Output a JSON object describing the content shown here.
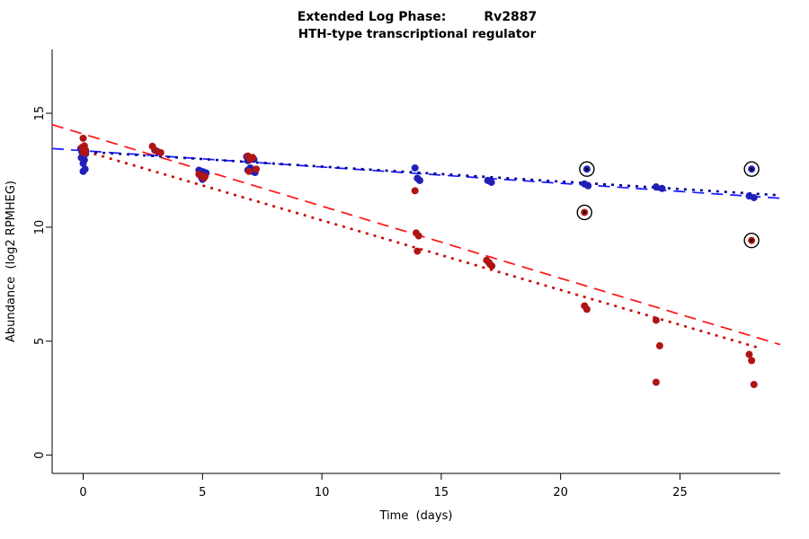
{
  "title": {
    "prefix": "Extended Log Phase:",
    "gene": "Rv2887"
  },
  "subtitle": "HTH-type transcriptional regulator",
  "chart_data": {
    "type": "scatter",
    "title": "Extended Log Phase:   Rv2887",
    "subtitle": "HTH-type transcriptional regulator",
    "xlabel": "Time  (days)",
    "ylabel": "Abundance  (log2 RPMHEG)",
    "xlim": [
      -1.3,
      29.2
    ],
    "ylim": [
      -0.8,
      17.8
    ],
    "xticks": [
      0,
      5,
      10,
      15,
      20,
      25
    ],
    "yticks": [
      0,
      5,
      10,
      15
    ],
    "grid": false,
    "legend": "none",
    "series": [
      {
        "name": "blue-replicates",
        "point_color": "#2020b8",
        "points": [
          [
            -0.1,
            13.45
          ],
          [
            0,
            13.4
          ],
          [
            0.1,
            13.38
          ],
          [
            0.05,
            13.32
          ],
          [
            -0.05,
            13.3
          ],
          [
            0,
            13.28
          ],
          [
            0.1,
            13.22
          ],
          [
            0,
            13.15
          ],
          [
            -0.08,
            13.05
          ],
          [
            0.05,
            12.95
          ],
          [
            0,
            12.8
          ],
          [
            0.08,
            12.55
          ],
          [
            0,
            12.45
          ],
          [
            3,
            13.38
          ],
          [
            3.15,
            13.3
          ],
          [
            4.85,
            12.5
          ],
          [
            4.95,
            12.45
          ],
          [
            5.05,
            12.42
          ],
          [
            5.15,
            12.38
          ],
          [
            4.9,
            12.32
          ],
          [
            5,
            12.28
          ],
          [
            5.1,
            12.25
          ],
          [
            4.95,
            12.2
          ],
          [
            5.05,
            12.15
          ],
          [
            5,
            12.1
          ],
          [
            6.85,
            13.1
          ],
          [
            6.95,
            13.05
          ],
          [
            7.05,
            13.02
          ],
          [
            7.15,
            12.98
          ],
          [
            6.9,
            12.92
          ],
          [
            7,
            12.6
          ],
          [
            6.9,
            12.5
          ],
          [
            7.1,
            12.45
          ],
          [
            7.2,
            12.4
          ],
          [
            13.9,
            12.6
          ],
          [
            14,
            12.15
          ],
          [
            14.1,
            12.05
          ],
          [
            16.95,
            12.05
          ],
          [
            17.1,
            11.97
          ],
          [
            21,
            11.9
          ],
          [
            21.15,
            11.82
          ],
          [
            24,
            11.77
          ],
          [
            24.25,
            11.7
          ],
          [
            27.9,
            11.37
          ],
          [
            28.1,
            11.3
          ]
        ],
        "circled_points": [
          [
            21.1,
            12.55
          ],
          [
            28,
            12.55
          ]
        ]
      },
      {
        "name": "red-replicates",
        "point_color": "#b01515",
        "points": [
          [
            0,
            13.9
          ],
          [
            0.05,
            13.57
          ],
          [
            -0.05,
            13.5
          ],
          [
            0,
            13.45
          ],
          [
            0.1,
            13.36
          ],
          [
            0,
            13.3
          ],
          [
            0.07,
            13.25
          ],
          [
            2.9,
            13.55
          ],
          [
            3.05,
            13.35
          ],
          [
            3.25,
            13.27
          ],
          [
            4.85,
            12.32
          ],
          [
            4.95,
            12.27
          ],
          [
            5.1,
            12.22
          ],
          [
            5.05,
            12.16
          ],
          [
            6.9,
            13.12
          ],
          [
            7.1,
            13.06
          ],
          [
            7,
            12.97
          ],
          [
            7.25,
            12.55
          ],
          [
            6.95,
            12.45
          ],
          [
            13.9,
            11.6
          ],
          [
            13.95,
            9.75
          ],
          [
            14.05,
            9.62
          ],
          [
            14,
            8.95
          ],
          [
            16.9,
            8.55
          ],
          [
            17,
            8.45
          ],
          [
            17.05,
            8.37
          ],
          [
            17.12,
            8.3
          ],
          [
            21,
            6.55
          ],
          [
            21.1,
            6.4
          ],
          [
            24,
            5.92
          ],
          [
            24.15,
            4.8
          ],
          [
            24,
            3.2
          ],
          [
            27.9,
            4.42
          ],
          [
            28,
            4.15
          ],
          [
            28.1,
            3.1
          ]
        ],
        "circled_points": [
          [
            21,
            10.65
          ],
          [
            28,
            9.42
          ]
        ]
      }
    ],
    "trend_lines": [
      {
        "name": "red-dashed-fit",
        "color": "#ff1111",
        "style": "dashed",
        "x": [
          -1.3,
          29.2
        ],
        "y": [
          14.5,
          4.85
        ]
      },
      {
        "name": "red-dotted-fit",
        "color": "#cc0000",
        "style": "dotted",
        "x": [
          -0.2,
          28.4
        ],
        "y": [
          13.42,
          4.68
        ]
      },
      {
        "name": "blue-dashed-fit",
        "color": "#1a1aff",
        "style": "dashed",
        "x": [
          -1.3,
          29.2
        ],
        "y": [
          13.45,
          11.27
        ]
      },
      {
        "name": "blue-dotted-fit",
        "color": "#000099",
        "style": "dotted",
        "x": [
          -0.2,
          29.2
        ],
        "y": [
          13.33,
          11.4
        ]
      }
    ]
  }
}
